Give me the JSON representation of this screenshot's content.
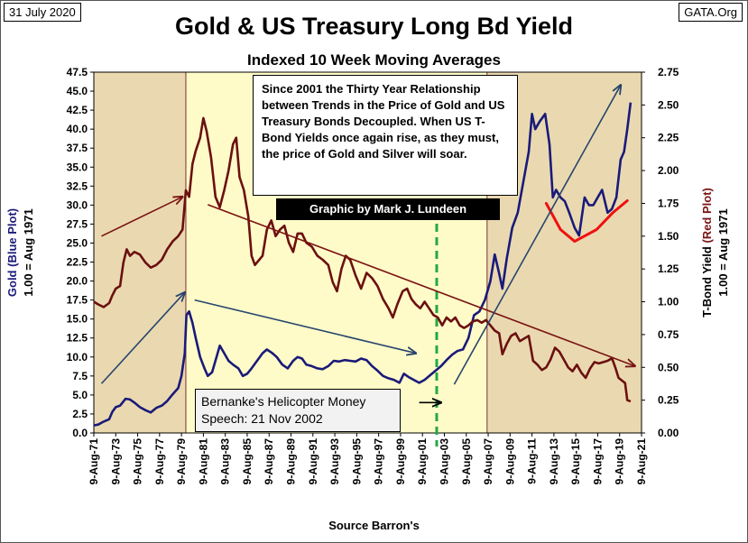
{
  "header": {
    "date": "31 July 2020",
    "site": "GATA.Org",
    "title": "Gold & US Treasury Long Bd Yield",
    "subtitle": "Indexed 10 Week Moving Averages"
  },
  "annotations": {
    "note": "Since 2001 the Thirty Year Relationship between Trends in the Price of Gold and US Treasury Bonds Decoupled. When US T-Bond Yields once again rise, as they must, the price of Gold and Silver will soar.",
    "credit": "Graphic by Mark J. Lundeen",
    "bernanke_line1": "Bernanke's Helicopter Money",
    "bernanke_line2": "Speech: 21 Nov 2002",
    "source": "Source Barron's"
  },
  "chart_data": {
    "type": "line",
    "x_tick_labels": [
      "9-Aug-71",
      "9-Aug-73",
      "9-Aug-75",
      "9-Aug-77",
      "9-Aug-79",
      "9-Aug-81",
      "9-Aug-83",
      "9-Aug-85",
      "9-Aug-87",
      "9-Aug-89",
      "9-Aug-91",
      "9-Aug-93",
      "9-Aug-95",
      "9-Aug-97",
      "9-Aug-99",
      "9-Aug-01",
      "9-Aug-03",
      "9-Aug-05",
      "9-Aug-07",
      "9-Aug-09",
      "9-Aug-11",
      "9-Aug-13",
      "9-Aug-15",
      "9-Aug-17",
      "9-Aug-19",
      "9-Aug-21"
    ],
    "xlim": [
      1971.6,
      2021.6
    ],
    "ylim_left": [
      0,
      47.5
    ],
    "ylim_right": [
      0,
      2.75
    ],
    "y_left_ticks": [
      "0.0",
      "2.5",
      "5.0",
      "7.5",
      "10.0",
      "12.5",
      "15.0",
      "17.5",
      "20.0",
      "22.5",
      "25.0",
      "27.5",
      "30.0",
      "32.5",
      "35.0",
      "37.5",
      "40.0",
      "42.5",
      "45.0",
      "47.5"
    ],
    "y_right_ticks": [
      "0.00",
      "0.25",
      "0.50",
      "0.75",
      "1.00",
      "1.25",
      "1.50",
      "1.75",
      "2.00",
      "2.25",
      "2.50",
      "2.75"
    ],
    "ylabel_left_1": "Gold",
    "ylabel_left_2": "(Blue Plot)",
    "ylabel_left_3": "1.00 = Aug 1971",
    "ylabel_right_1": "T-Bond Yield",
    "ylabel_right_2": "(Red Plot)",
    "ylabel_right_3": "1.00 = Aug 1971",
    "shaded_periods": [
      {
        "from": 1971.6,
        "to": 1980.0,
        "color": "#ead9b0"
      },
      {
        "from": 1980.0,
        "to": 2007.5,
        "color": "#fffbc8"
      },
      {
        "from": 2007.5,
        "to": 2021.6,
        "color": "#ead9b0"
      }
    ],
    "event_line": {
      "x": 2002.9,
      "color": "#22aa44"
    },
    "series": [
      {
        "key": "gold",
        "axis": "left",
        "color": "#1a1a7a",
        "points": [
          [
            1971.6,
            1.0
          ],
          [
            1972.0,
            1.1
          ],
          [
            1972.5,
            1.5
          ],
          [
            1973.0,
            1.8
          ],
          [
            1973.3,
            2.8
          ],
          [
            1973.6,
            3.4
          ],
          [
            1974.0,
            3.6
          ],
          [
            1974.5,
            4.5
          ],
          [
            1974.9,
            4.4
          ],
          [
            1975.3,
            4.0
          ],
          [
            1975.8,
            3.4
          ],
          [
            1976.3,
            3.0
          ],
          [
            1976.8,
            2.7
          ],
          [
            1977.3,
            3.3
          ],
          [
            1977.8,
            3.6
          ],
          [
            1978.3,
            4.2
          ],
          [
            1978.8,
            5.1
          ],
          [
            1979.3,
            5.9
          ],
          [
            1979.6,
            7.5
          ],
          [
            1979.9,
            10.5
          ],
          [
            1980.05,
            15.5
          ],
          [
            1980.3,
            16.0
          ],
          [
            1980.6,
            14.5
          ],
          [
            1980.9,
            12.5
          ],
          [
            1981.3,
            10.0
          ],
          [
            1981.7,
            8.5
          ],
          [
            1982.0,
            7.5
          ],
          [
            1982.4,
            8.0
          ],
          [
            1982.8,
            10.0
          ],
          [
            1983.1,
            11.5
          ],
          [
            1983.5,
            10.5
          ],
          [
            1983.9,
            9.5
          ],
          [
            1984.3,
            9.0
          ],
          [
            1984.8,
            8.5
          ],
          [
            1985.2,
            7.5
          ],
          [
            1985.6,
            7.8
          ],
          [
            1986.0,
            8.5
          ],
          [
            1986.5,
            9.5
          ],
          [
            1987.0,
            10.5
          ],
          [
            1987.4,
            11.0
          ],
          [
            1987.9,
            10.5
          ],
          [
            1988.3,
            10.0
          ],
          [
            1988.8,
            9.0
          ],
          [
            1989.3,
            8.5
          ],
          [
            1989.8,
            9.5
          ],
          [
            1990.2,
            10.0
          ],
          [
            1990.6,
            9.8
          ],
          [
            1991.0,
            9.0
          ],
          [
            1991.5,
            8.8
          ],
          [
            1992.0,
            8.5
          ],
          [
            1992.5,
            8.4
          ],
          [
            1993.0,
            8.8
          ],
          [
            1993.5,
            9.5
          ],
          [
            1994.0,
            9.4
          ],
          [
            1994.5,
            9.6
          ],
          [
            1995.0,
            9.5
          ],
          [
            1995.5,
            9.4
          ],
          [
            1996.0,
            9.8
          ],
          [
            1996.5,
            9.6
          ],
          [
            1997.0,
            8.8
          ],
          [
            1997.5,
            8.2
          ],
          [
            1998.0,
            7.5
          ],
          [
            1998.5,
            7.2
          ],
          [
            1999.0,
            7.0
          ],
          [
            1999.5,
            6.6
          ],
          [
            1999.9,
            7.8
          ],
          [
            2000.3,
            7.4
          ],
          [
            2000.8,
            7.0
          ],
          [
            2001.3,
            6.6
          ],
          [
            2001.8,
            7.0
          ],
          [
            2002.3,
            7.6
          ],
          [
            2002.8,
            8.2
          ],
          [
            2003.3,
            8.8
          ],
          [
            2003.8,
            9.6
          ],
          [
            2004.3,
            10.3
          ],
          [
            2004.8,
            10.8
          ],
          [
            2005.3,
            11.0
          ],
          [
            2005.8,
            12.5
          ],
          [
            2006.3,
            15.5
          ],
          [
            2006.8,
            16.0
          ],
          [
            2007.3,
            17.5
          ],
          [
            2007.8,
            20.0
          ],
          [
            2008.2,
            23.5
          ],
          [
            2008.6,
            21.0
          ],
          [
            2008.9,
            19.0
          ],
          [
            2009.3,
            23.0
          ],
          [
            2009.8,
            27.0
          ],
          [
            2010.3,
            29.0
          ],
          [
            2010.8,
            33.0
          ],
          [
            2011.3,
            37.0
          ],
          [
            2011.6,
            42.0
          ],
          [
            2011.9,
            40.0
          ],
          [
            2012.3,
            41.0
          ],
          [
            2012.8,
            42.0
          ],
          [
            2013.2,
            38.0
          ],
          [
            2013.5,
            31.0
          ],
          [
            2013.8,
            32.0
          ],
          [
            2014.2,
            31.0
          ],
          [
            2014.6,
            30.5
          ],
          [
            2015.0,
            29.0
          ],
          [
            2015.5,
            27.0
          ],
          [
            2015.9,
            26.0
          ],
          [
            2016.4,
            31.0
          ],
          [
            2016.8,
            30.0
          ],
          [
            2017.2,
            30.0
          ],
          [
            2017.6,
            31.0
          ],
          [
            2018.0,
            32.0
          ],
          [
            2018.5,
            29.0
          ],
          [
            2018.9,
            29.5
          ],
          [
            2019.3,
            31.0
          ],
          [
            2019.7,
            36.0
          ],
          [
            2020.0,
            37.0
          ],
          [
            2020.3,
            40.0
          ],
          [
            2020.6,
            43.5
          ]
        ]
      },
      {
        "key": "tbond",
        "axis": "right",
        "color": "#6b1010",
        "points": [
          [
            1971.6,
            1.0
          ],
          [
            1972.0,
            0.98
          ],
          [
            1972.5,
            0.96
          ],
          [
            1973.0,
            0.99
          ],
          [
            1973.3,
            1.05
          ],
          [
            1973.6,
            1.1
          ],
          [
            1974.0,
            1.12
          ],
          [
            1974.3,
            1.3
          ],
          [
            1974.6,
            1.4
          ],
          [
            1974.9,
            1.35
          ],
          [
            1975.3,
            1.38
          ],
          [
            1975.8,
            1.36
          ],
          [
            1976.3,
            1.3
          ],
          [
            1976.8,
            1.26
          ],
          [
            1977.3,
            1.28
          ],
          [
            1977.8,
            1.32
          ],
          [
            1978.3,
            1.4
          ],
          [
            1978.8,
            1.46
          ],
          [
            1979.3,
            1.5
          ],
          [
            1979.7,
            1.55
          ],
          [
            1980.0,
            1.85
          ],
          [
            1980.3,
            1.8
          ],
          [
            1980.6,
            2.05
          ],
          [
            1980.9,
            2.15
          ],
          [
            1981.3,
            2.25
          ],
          [
            1981.6,
            2.4
          ],
          [
            1981.9,
            2.3
          ],
          [
            1982.3,
            2.1
          ],
          [
            1982.7,
            1.8
          ],
          [
            1983.1,
            1.72
          ],
          [
            1983.5,
            1.85
          ],
          [
            1983.9,
            2.0
          ],
          [
            1984.3,
            2.2
          ],
          [
            1984.6,
            2.25
          ],
          [
            1984.9,
            1.95
          ],
          [
            1985.3,
            1.85
          ],
          [
            1985.7,
            1.65
          ],
          [
            1986.0,
            1.35
          ],
          [
            1986.3,
            1.28
          ],
          [
            1986.7,
            1.32
          ],
          [
            1987.0,
            1.35
          ],
          [
            1987.4,
            1.55
          ],
          [
            1987.8,
            1.62
          ],
          [
            1988.2,
            1.5
          ],
          [
            1988.6,
            1.55
          ],
          [
            1989.0,
            1.58
          ],
          [
            1989.4,
            1.45
          ],
          [
            1989.8,
            1.38
          ],
          [
            1990.2,
            1.52
          ],
          [
            1990.6,
            1.52
          ],
          [
            1991.0,
            1.45
          ],
          [
            1991.5,
            1.42
          ],
          [
            1992.0,
            1.35
          ],
          [
            1992.5,
            1.32
          ],
          [
            1993.0,
            1.28
          ],
          [
            1993.4,
            1.15
          ],
          [
            1993.8,
            1.08
          ],
          [
            1994.2,
            1.25
          ],
          [
            1994.6,
            1.35
          ],
          [
            1995.0,
            1.32
          ],
          [
            1995.5,
            1.2
          ],
          [
            1996.0,
            1.1
          ],
          [
            1996.5,
            1.22
          ],
          [
            1997.0,
            1.18
          ],
          [
            1997.5,
            1.12
          ],
          [
            1998.0,
            1.02
          ],
          [
            1998.5,
            0.95
          ],
          [
            1998.9,
            0.88
          ],
          [
            1999.3,
            0.98
          ],
          [
            1999.8,
            1.08
          ],
          [
            2000.2,
            1.1
          ],
          [
            2000.6,
            1.02
          ],
          [
            2001.0,
            0.98
          ],
          [
            2001.4,
            0.95
          ],
          [
            2001.8,
            1.0
          ],
          [
            2002.2,
            0.95
          ],
          [
            2002.6,
            0.9
          ],
          [
            2003.0,
            0.88
          ],
          [
            2003.4,
            0.82
          ],
          [
            2003.8,
            0.88
          ],
          [
            2004.2,
            0.85
          ],
          [
            2004.6,
            0.88
          ],
          [
            2005.0,
            0.82
          ],
          [
            2005.4,
            0.8
          ],
          [
            2005.8,
            0.82
          ],
          [
            2006.2,
            0.85
          ],
          [
            2006.6,
            0.86
          ],
          [
            2007.0,
            0.84
          ],
          [
            2007.4,
            0.86
          ],
          [
            2007.8,
            0.82
          ],
          [
            2008.2,
            0.78
          ],
          [
            2008.6,
            0.76
          ],
          [
            2008.9,
            0.6
          ],
          [
            2009.3,
            0.68
          ],
          [
            2009.7,
            0.74
          ],
          [
            2010.1,
            0.76
          ],
          [
            2010.5,
            0.7
          ],
          [
            2010.9,
            0.72
          ],
          [
            2011.3,
            0.74
          ],
          [
            2011.7,
            0.55
          ],
          [
            2012.1,
            0.52
          ],
          [
            2012.5,
            0.48
          ],
          [
            2012.9,
            0.5
          ],
          [
            2013.3,
            0.56
          ],
          [
            2013.7,
            0.65
          ],
          [
            2014.1,
            0.62
          ],
          [
            2014.5,
            0.56
          ],
          [
            2014.9,
            0.5
          ],
          [
            2015.3,
            0.47
          ],
          [
            2015.7,
            0.52
          ],
          [
            2016.1,
            0.46
          ],
          [
            2016.5,
            0.42
          ],
          [
            2016.9,
            0.49
          ],
          [
            2017.3,
            0.54
          ],
          [
            2017.7,
            0.53
          ],
          [
            2018.1,
            0.54
          ],
          [
            2018.5,
            0.55
          ],
          [
            2018.9,
            0.57
          ],
          [
            2019.2,
            0.5
          ],
          [
            2019.5,
            0.42
          ],
          [
            2019.8,
            0.4
          ],
          [
            2020.1,
            0.38
          ],
          [
            2020.3,
            0.25
          ],
          [
            2020.6,
            0.24
          ]
        ]
      }
    ],
    "trend_arrows": [
      {
        "from": [
          1972.3,
          1.5
        ],
        "to": [
          1979.7,
          1.8
        ],
        "axis": "right",
        "color": "#7a1414"
      },
      {
        "from": [
          1982.0,
          1.74
        ],
        "to": [
          2021.0,
          0.51
        ],
        "axis": "right",
        "color": "#7a1414"
      },
      {
        "from": [
          1972.3,
          6.5
        ],
        "to": [
          1979.9,
          18.5
        ],
        "axis": "left",
        "color": "#27456e"
      },
      {
        "from": [
          1980.8,
          17.5
        ],
        "to": [
          2001.0,
          10.5
        ],
        "axis": "left",
        "color": "#27456e"
      },
      {
        "from": [
          2004.5,
          6.4
        ],
        "to": [
          2019.7,
          45.8
        ],
        "axis": "left",
        "color": "#27456e"
      },
      {
        "from": [
          2001.3,
          4.0
        ],
        "to": [
          2003.3,
          4.0
        ],
        "axis": "left",
        "color": "#000000"
      }
    ],
    "highlight_curve": {
      "axis": "right",
      "color": "#ee1111",
      "points": [
        [
          2012.9,
          1.75
        ],
        [
          2014.2,
          1.55
        ],
        [
          2015.5,
          1.46
        ],
        [
          2017.5,
          1.55
        ],
        [
          2019.0,
          1.68
        ],
        [
          2020.3,
          1.77
        ]
      ]
    }
  }
}
